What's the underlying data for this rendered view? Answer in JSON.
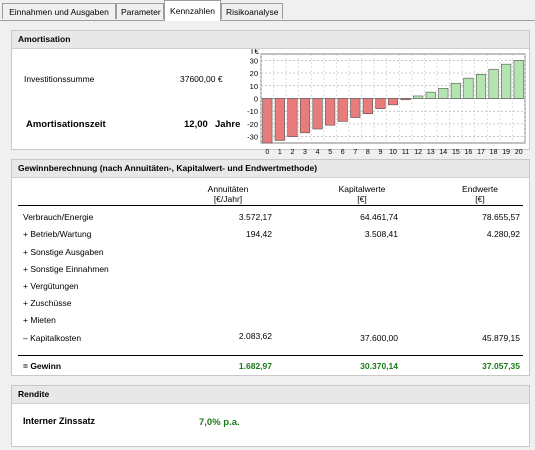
{
  "tabs": [
    {
      "label": "Einnahmen und Ausgaben",
      "active": false
    },
    {
      "label": "Parameter",
      "active": false
    },
    {
      "label": "Kennzahlen",
      "active": true
    },
    {
      "label": "Risikoanalyse",
      "active": false
    }
  ],
  "amortisation": {
    "title": "Amortisation",
    "invest_label": "Investitionssumme",
    "invest_value": "37600,00 €",
    "time_label": "Amortisationszeit",
    "time_value": "12,00",
    "time_unit": "Jahre"
  },
  "chart_data": {
    "type": "bar",
    "ylabel": "T€",
    "x": [
      "0",
      "1",
      "2",
      "3",
      "4",
      "5",
      "6",
      "7",
      "8",
      "9",
      "10",
      "11",
      "12",
      "13",
      "14",
      "15",
      "16",
      "17",
      "18",
      "19",
      "20"
    ],
    "values": [
      -36,
      -33,
      -30,
      -27,
      -24,
      -21,
      -18,
      -15,
      -12,
      -8,
      -5,
      -1,
      2,
      5,
      8,
      12,
      16,
      19,
      23,
      27,
      30
    ],
    "ylim": [
      -35,
      35
    ],
    "yticks": [
      "30",
      "20",
      "10",
      "0",
      "-10",
      "-20",
      "-30"
    ],
    "ytick_values": [
      30,
      20,
      10,
      0,
      -10,
      -20,
      -30
    ],
    "grid": true,
    "colors": {
      "negative": "#e87c7c",
      "positive": "#b4e4b0",
      "border": "#555555"
    }
  },
  "gewinn": {
    "title": "Gewinnberechnung (nach Annuitäten-, Kapitalwert- und Endwertmethode)",
    "col1": "Annuitäten",
    "col1_unit": "[€/Jahr]",
    "col2": "Kapitalwerte",
    "col2_unit": "[€]",
    "col3": "Endwerte",
    "col3_unit": "[€]",
    "rows": [
      {
        "label": "Verbrauch/Energie",
        "a": "3.572,17",
        "k": "64.461,74",
        "e": "78.655,57"
      },
      {
        "label": "+ Betrieb/Wartung",
        "a": "194,42",
        "k": "3.508,41",
        "e": "4.280,92"
      },
      {
        "label": "+ Sonstige Ausgaben",
        "a": "",
        "k": "",
        "e": ""
      },
      {
        "label": "+ Sonstige Einnahmen",
        "a": "",
        "k": "",
        "e": ""
      },
      {
        "label": "+ Vergütungen",
        "a": "",
        "k": "",
        "e": ""
      },
      {
        "label": "+ Zuschüsse",
        "a": "",
        "k": "",
        "e": ""
      },
      {
        "label": "+ Mieten",
        "a": "",
        "k": "",
        "e": ""
      },
      {
        "label": "– Kapitalkosten",
        "a": "2.083,62",
        "k": "37.600,00",
        "e": "45.879,15"
      }
    ],
    "total_label": "= Gewinn",
    "total_a": "1.682,97",
    "total_k": "30.370,14",
    "total_e": "37.057,35"
  },
  "rendite": {
    "title": "Rendite",
    "label": "Interner Zinssatz",
    "value": "7,0% p.a."
  }
}
